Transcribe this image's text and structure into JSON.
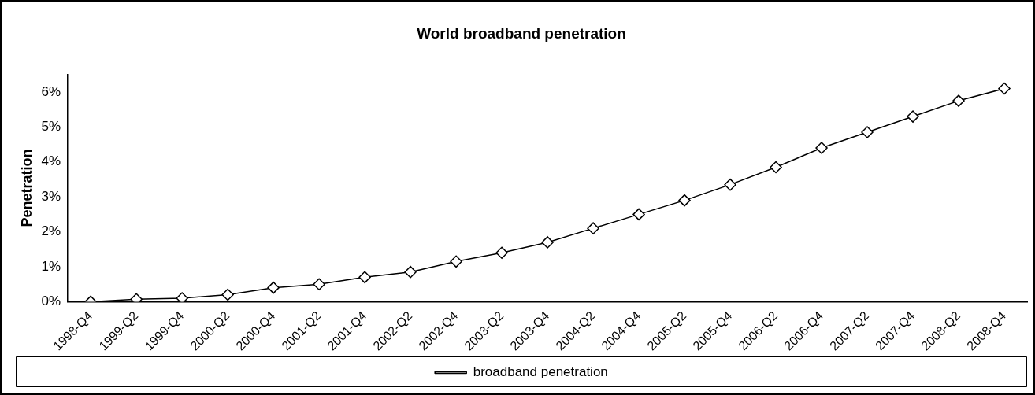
{
  "chart_data": {
    "type": "line",
    "title": "World broadband penetration",
    "ylabel": "Penetration",
    "categories": [
      "1998-Q4",
      "1999-Q2",
      "1999-Q4",
      "2000-Q2",
      "2000-Q4",
      "2001-Q2",
      "2001-Q4",
      "2002-Q2",
      "2002-Q4",
      "2003-Q2",
      "2003-Q4",
      "2004-Q2",
      "2004-Q4",
      "2005-Q2",
      "2005-Q4",
      "2006-Q2",
      "2006-Q4",
      "2007-Q2",
      "2007-Q4",
      "2008-Q2",
      "2008-Q4"
    ],
    "series": [
      {
        "name": "broadband penetration",
        "color": "#000000",
        "values": [
          0,
          0.07,
          0.1,
          0.2,
          0.4,
          0.5,
          0.7,
          0.85,
          1.15,
          1.4,
          1.7,
          2.1,
          2.5,
          2.9,
          3.35,
          3.85,
          4.4,
          4.85,
          5.3,
          5.75,
          6.1
        ]
      }
    ],
    "ylim": [
      0,
      6.5
    ],
    "yticks": [
      {
        "value": 0,
        "label": "0%"
      },
      {
        "value": 1,
        "label": "1%"
      },
      {
        "value": 2,
        "label": "2%"
      },
      {
        "value": 3,
        "label": "3%"
      },
      {
        "value": 4,
        "label": "4%"
      },
      {
        "value": 5,
        "label": "5%"
      },
      {
        "value": 6,
        "label": "6%"
      }
    ],
    "grid": false,
    "legend": "bottom",
    "marker": "diamond",
    "line_style": "solid"
  }
}
